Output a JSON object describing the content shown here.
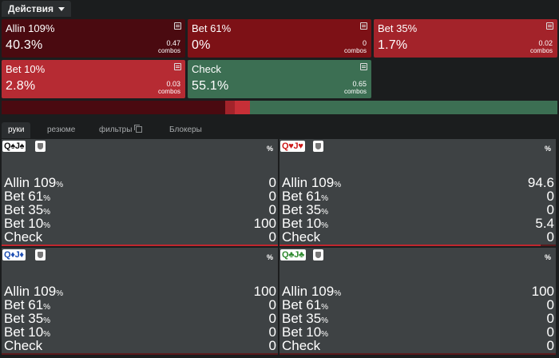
{
  "header": {
    "actions_label": "Действия"
  },
  "actions": [
    {
      "name": "Allin 109%",
      "percent": "40.3%",
      "combos": "0.47",
      "combos_label": "combos",
      "color": "#4a0a10"
    },
    {
      "name": "Bet 61%",
      "percent": "0%",
      "combos": "0",
      "combos_label": "combos",
      "color": "#7d1116"
    },
    {
      "name": "Bet 35%",
      "percent": "1.7%",
      "combos": "0.02",
      "combos_label": "combos",
      "color": "#a3232a"
    },
    {
      "name": "Bet 10%",
      "percent": "2.8%",
      "combos": "0.03",
      "combos_label": "combos",
      "color": "#b62b33"
    },
    {
      "name": "Check",
      "percent": "55.1%",
      "combos": "0.65",
      "combos_label": "combos",
      "color": "#3c6f53"
    }
  ],
  "frequency_bar": [
    {
      "action": "Allin 109%",
      "fraction": 0.403,
      "color": "#4a0a10"
    },
    {
      "action": "Bet 61%",
      "fraction": 0.0,
      "color": "#7d1116"
    },
    {
      "action": "Bet 35%",
      "fraction": 0.017,
      "color": "#a3232a"
    },
    {
      "action": "Bet 10%",
      "fraction": 0.028,
      "color": "#c72f37"
    },
    {
      "action": "Check",
      "fraction": 0.551,
      "color": "#3c6f53"
    }
  ],
  "tabs": [
    {
      "label": "руки",
      "active": true
    },
    {
      "label": "резюме",
      "active": false
    },
    {
      "label": "фильтры",
      "active": false,
      "icon": "copy-icon"
    },
    {
      "label": "Блокеры",
      "active": false
    }
  ],
  "hands": [
    {
      "cards": [
        {
          "rank": "Q",
          "suit": "♠",
          "color": "#111111"
        },
        {
          "rank": "J",
          "suit": "♠",
          "color": "#111111"
        }
      ],
      "percent_sign": "%",
      "rows": [
        {
          "name": "Allin 109",
          "pct": "%",
          "value": "0"
        },
        {
          "name": "Bet 61",
          "pct": "%",
          "value": "0"
        },
        {
          "name": "Bet 35",
          "pct": "%",
          "value": "0"
        },
        {
          "name": "Bet 10",
          "pct": "%",
          "value": "100"
        },
        {
          "name": "Check",
          "pct": "",
          "value": "0"
        }
      ],
      "bar_fraction": 1.0
    },
    {
      "cards": [
        {
          "rank": "Q",
          "suit": "♥",
          "color": "#cc1a1a"
        },
        {
          "rank": "J",
          "suit": "♥",
          "color": "#cc1a1a"
        }
      ],
      "percent_sign": "%",
      "rows": [
        {
          "name": "Allin 109",
          "pct": "%",
          "value": "94.6"
        },
        {
          "name": "Bet 61",
          "pct": "%",
          "value": "0"
        },
        {
          "name": "Bet 35",
          "pct": "%",
          "value": "0"
        },
        {
          "name": "Bet 10",
          "pct": "%",
          "value": "5.4"
        },
        {
          "name": "Check",
          "pct": "",
          "value": "0"
        }
      ],
      "bar_fraction": 0.946
    },
    {
      "cards": [
        {
          "rank": "Q",
          "suit": "♦",
          "color": "#1f4fb3"
        },
        {
          "rank": "J",
          "suit": "♦",
          "color": "#1f4fb3"
        }
      ],
      "percent_sign": "%",
      "rows": [
        {
          "name": "Allin 109",
          "pct": "%",
          "value": "100"
        },
        {
          "name": "Bet 61",
          "pct": "%",
          "value": "0"
        },
        {
          "name": "Bet 35",
          "pct": "%",
          "value": "0"
        },
        {
          "name": "Bet 10",
          "pct": "%",
          "value": "0"
        },
        {
          "name": "Check",
          "pct": "",
          "value": "0"
        }
      ],
      "bar_fraction": 0.0
    },
    {
      "cards": [
        {
          "rank": "Q",
          "suit": "♣",
          "color": "#2f8a2f"
        },
        {
          "rank": "J",
          "suit": "♣",
          "color": "#2f8a2f"
        }
      ],
      "percent_sign": "%",
      "rows": [
        {
          "name": "Allin 109",
          "pct": "%",
          "value": "100"
        },
        {
          "name": "Bet 61",
          "pct": "%",
          "value": "0"
        },
        {
          "name": "Bet 35",
          "pct": "%",
          "value": "0"
        },
        {
          "name": "Bet 10",
          "pct": "%",
          "value": "0"
        },
        {
          "name": "Check",
          "pct": "",
          "value": "0"
        }
      ],
      "bar_fraction": 0.0
    }
  ]
}
